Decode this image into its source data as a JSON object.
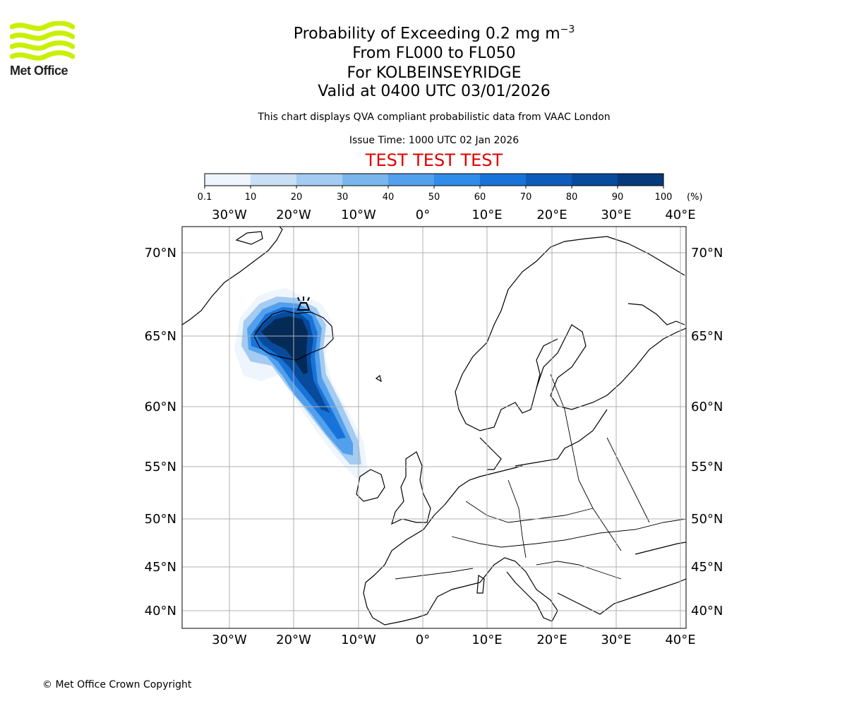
{
  "logo": {
    "text": "Met Office",
    "color": "#c8f000"
  },
  "header": {
    "title_main": "Probability of Exceeding 0.2 mg m",
    "title_exponent": "−3",
    "level_range": "From FL000 to FL050",
    "volcano": "For KOLBEINSEYRIDGE",
    "valid_time": "Valid at 0400 UTC 03/01/2026",
    "description": "This chart displays QVA compliant probabilistic data from VAAC London",
    "issue_time": "Issue Time: 1000 UTC 02 Jan 2026",
    "test_banner": "TEST TEST TEST"
  },
  "colorbar": {
    "ticks": [
      "0.1",
      "10",
      "20",
      "30",
      "40",
      "50",
      "60",
      "70",
      "80",
      "90",
      "100"
    ],
    "unit": "(%)",
    "colors": [
      "#eef5fd",
      "#c8dff6",
      "#a4cbf1",
      "#7ab6ee",
      "#52a0ec",
      "#2f8ce8",
      "#1873d8",
      "#0d5cbc",
      "#084b9c",
      "#063a7a",
      "#042a58"
    ]
  },
  "map": {
    "lon_labels": [
      "30°W",
      "20°W",
      "10°W",
      "0°",
      "10°E",
      "20°E",
      "30°E",
      "40°E"
    ],
    "lat_labels": [
      "70°N",
      "65°N",
      "60°N",
      "55°N",
      "50°N",
      "45°N",
      "40°N"
    ],
    "volcano_symbol": "volcano-icon"
  },
  "footer": {
    "copyright": "© Met Office Crown Copyright"
  }
}
